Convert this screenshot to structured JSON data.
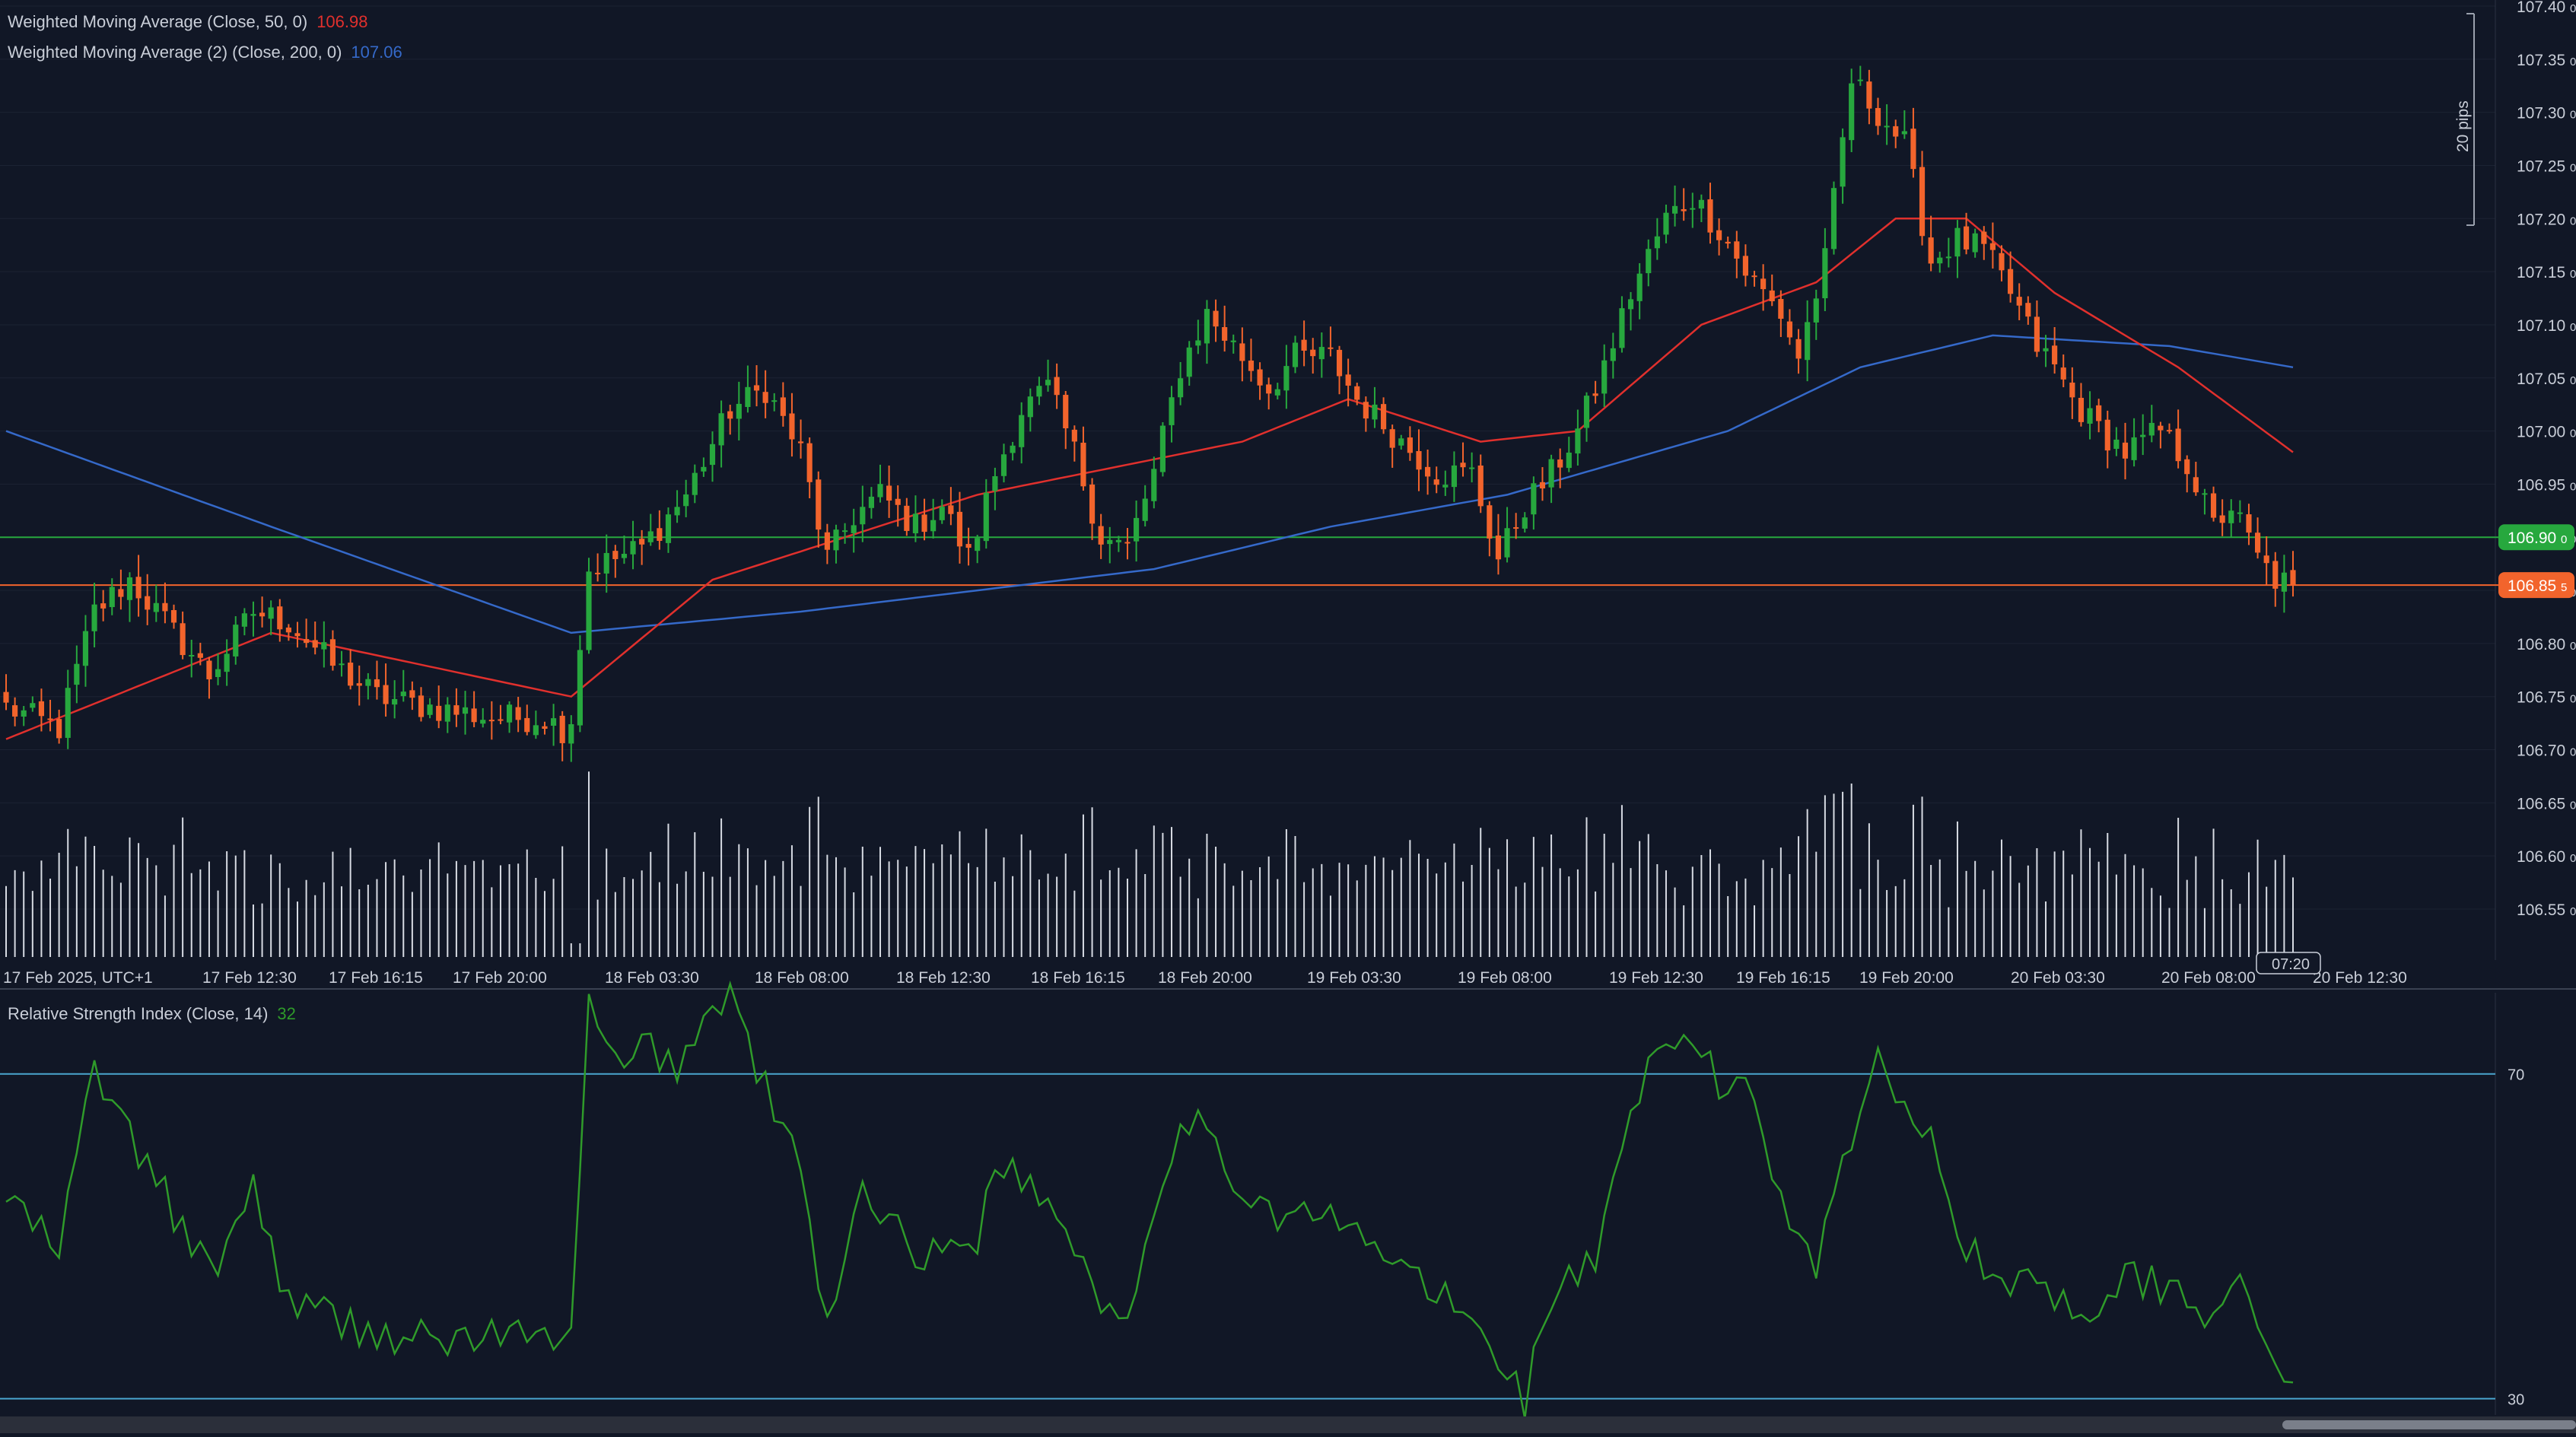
{
  "colors": {
    "background": "#111726",
    "grid": "#1c2333",
    "up": "#27a83e",
    "down": "#f2642c",
    "wma50": "#e0302d",
    "wma200": "#3569c9",
    "rsi": "#2f9b2a",
    "rsi_band": "#4aa5cf",
    "support_line": "#27a83e",
    "price_line": "#f2642c",
    "axis_text": "#c9ced8",
    "volume": "#d7dbe3"
  },
  "indicators": [
    {
      "label": "Weighted Moving Average (Close, 50, 0)",
      "value": "106.98",
      "color": "#e0302d"
    },
    {
      "label": "Weighted Moving Average (2) (Close, 200, 0)",
      "value": "107.06",
      "color": "#3569c9"
    }
  ],
  "rsi_legend": {
    "label": "Relative Strength Index (Close, 14)",
    "value": "32",
    "color": "#2f9b2a"
  },
  "scale_marker": "20 pips",
  "price_badges": [
    {
      "value": "106.90",
      "superscript": "0",
      "color": "#27a83e"
    },
    {
      "value": "106.85",
      "superscript": "5",
      "color": "#f2642c"
    }
  ],
  "price_ticks": [
    "107.40",
    "107.35",
    "107.30",
    "107.25",
    "107.20",
    "107.15",
    "107.10",
    "107.05",
    "107.00",
    "106.95",
    "106.90",
    "106.85",
    "106.80",
    "106.75",
    "106.70",
    "106.65",
    "106.60",
    "106.55"
  ],
  "time_labels": [
    "17 Feb 2025, UTC+1",
    "17 Feb 12:30",
    "17 Feb 16:15",
    "17 Feb 20:00",
    "18 Feb 03:30",
    "18 Feb 08:00",
    "18 Feb 12:30",
    "18 Feb 16:15",
    "18 Feb 20:00",
    "19 Feb 03:30",
    "19 Feb 08:00",
    "19 Feb 12:30",
    "19 Feb 16:15",
    "19 Feb 20:00",
    "20 Feb 03:30",
    "20 Feb 08:00",
    "20 Feb 12:30"
  ],
  "countdown_label": "07:20",
  "rsi_levels": [
    "70",
    "30"
  ],
  "chart_data": [
    {
      "type": "candlestick",
      "symbol_units": "price",
      "ylim": [
        106.52,
        107.4
      ],
      "price_ticks": [
        107.4,
        107.35,
        107.3,
        107.25,
        107.2,
        107.15,
        107.1,
        107.05,
        107.0,
        106.95,
        106.9,
        106.85,
        106.8,
        106.75,
        106.7,
        106.65,
        106.6,
        106.55
      ],
      "x_labels": [
        "17 Feb 2025, UTC+1",
        "17 Feb 12:30",
        "17 Feb 16:15",
        "17 Feb 20:00",
        "18 Feb 03:30",
        "18 Feb 08:00",
        "18 Feb 12:30",
        "18 Feb 16:15",
        "18 Feb 20:00",
        "19 Feb 03:30",
        "19 Feb 08:00",
        "19 Feb 12:30",
        "19 Feb 16:15",
        "19 Feb 20:00",
        "20 Feb 03:30",
        "20 Feb 08:00",
        "20 Feb 12:30"
      ],
      "close_anchors": [
        [
          0,
          106.74
        ],
        [
          6,
          106.72
        ],
        [
          10,
          106.83
        ],
        [
          14,
          106.86
        ],
        [
          18,
          106.82
        ],
        [
          23,
          106.77
        ],
        [
          28,
          106.83
        ],
        [
          32,
          106.82
        ],
        [
          37,
          106.78
        ],
        [
          42,
          106.75
        ],
        [
          48,
          106.74
        ],
        [
          55,
          106.73
        ],
        [
          61,
          106.73
        ],
        [
          63,
          106.72
        ],
        [
          64,
          106.73
        ],
        [
          66,
          106.87
        ],
        [
          72,
          106.89
        ],
        [
          77,
          106.94
        ],
        [
          82,
          107.02
        ],
        [
          86,
          107.04
        ],
        [
          90,
          106.98
        ],
        [
          93,
          106.88
        ],
        [
          96,
          106.92
        ],
        [
          99,
          106.94
        ],
        [
          103,
          106.91
        ],
        [
          106,
          106.93
        ],
        [
          109,
          106.88
        ],
        [
          112,
          106.96
        ],
        [
          115,
          107.02
        ],
        [
          118,
          107.04
        ],
        [
          121,
          106.98
        ],
        [
          124,
          106.9
        ],
        [
          127,
          106.89
        ],
        [
          130,
          106.96
        ],
        [
          133,
          107.06
        ],
        [
          136,
          107.11
        ],
        [
          140,
          107.07
        ],
        [
          143,
          107.04
        ],
        [
          146,
          107.07
        ],
        [
          150,
          107.07
        ],
        [
          153,
          107.03
        ],
        [
          158,
          106.99
        ],
        [
          162,
          106.96
        ],
        [
          166,
          106.96
        ],
        [
          169,
          106.88
        ],
        [
          172,
          106.93
        ],
        [
          175,
          106.96
        ],
        [
          178,
          107.0
        ],
        [
          181,
          107.06
        ],
        [
          184,
          107.13
        ],
        [
          188,
          107.2
        ],
        [
          191,
          107.22
        ],
        [
          194,
          107.19
        ],
        [
          197,
          107.15
        ],
        [
          201,
          107.11
        ],
        [
          203,
          107.07
        ],
        [
          206,
          107.16
        ],
        [
          209,
          107.33
        ],
        [
          212,
          107.3
        ],
        [
          215,
          107.27
        ],
        [
          218,
          107.16
        ],
        [
          221,
          107.18
        ],
        [
          224,
          107.17
        ],
        [
          227,
          107.13
        ],
        [
          230,
          107.08
        ],
        [
          232,
          107.06
        ],
        [
          234,
          107.03
        ],
        [
          236,
          107.01
        ],
        [
          240,
          106.98
        ],
        [
          244,
          107.0
        ],
        [
          247,
          106.97
        ],
        [
          250,
          106.91
        ],
        [
          252,
          106.93
        ],
        [
          255,
          106.88
        ],
        [
          257,
          106.86
        ],
        [
          259,
          106.855
        ]
      ],
      "wma50": [
        [
          0,
          106.71
        ],
        [
          30,
          106.81
        ],
        [
          64,
          106.75
        ],
        [
          80,
          106.86
        ],
        [
          110,
          106.94
        ],
        [
          140,
          106.99
        ],
        [
          152,
          107.03
        ],
        [
          167,
          106.99
        ],
        [
          178,
          107.0
        ],
        [
          192,
          107.1
        ],
        [
          205,
          107.14
        ],
        [
          214,
          107.2
        ],
        [
          222,
          107.2
        ],
        [
          232,
          107.13
        ],
        [
          246,
          107.06
        ],
        [
          259,
          106.98
        ]
      ],
      "wma200": [
        [
          0,
          107.0
        ],
        [
          30,
          106.91
        ],
        [
          64,
          106.81
        ],
        [
          90,
          106.83
        ],
        [
          130,
          106.87
        ],
        [
          150,
          106.91
        ],
        [
          170,
          106.94
        ],
        [
          195,
          107.0
        ],
        [
          210,
          107.06
        ],
        [
          225,
          107.09
        ],
        [
          245,
          107.08
        ],
        [
          259,
          107.06
        ]
      ],
      "horizontal_lines": [
        {
          "price": 106.9,
          "color": "#27a83e"
        },
        {
          "price": 106.855,
          "color": "#f2642c"
        }
      ],
      "n_candles": 260,
      "volume": "per-candle histogram (relative units)"
    },
    {
      "type": "line",
      "name": "RSI(14)",
      "ylim": [
        28,
        80
      ],
      "levels": [
        70,
        30
      ],
      "anchors": [
        [
          0,
          55
        ],
        [
          6,
          48
        ],
        [
          10,
          71
        ],
        [
          14,
          62
        ],
        [
          18,
          55
        ],
        [
          23,
          45
        ],
        [
          28,
          56
        ],
        [
          32,
          42
        ],
        [
          37,
          40
        ],
        [
          42,
          38
        ],
        [
          50,
          37
        ],
        [
          55,
          38
        ],
        [
          61,
          37
        ],
        [
          63,
          39
        ],
        [
          64,
          37
        ],
        [
          66,
          78
        ],
        [
          70,
          69
        ],
        [
          72,
          74
        ],
        [
          76,
          71
        ],
        [
          80,
          78
        ],
        [
          82,
          80
        ],
        [
          86,
          68
        ],
        [
          90,
          58
        ],
        [
          93,
          38
        ],
        [
          96,
          55
        ],
        [
          100,
          53
        ],
        [
          104,
          47
        ],
        [
          110,
          50
        ],
        [
          112,
          60
        ],
        [
          116,
          56
        ],
        [
          120,
          52
        ],
        [
          124,
          42
        ],
        [
          127,
          40
        ],
        [
          130,
          55
        ],
        [
          134,
          65
        ],
        [
          138,
          58
        ],
        [
          144,
          53
        ],
        [
          150,
          52
        ],
        [
          156,
          48
        ],
        [
          162,
          43
        ],
        [
          168,
          37
        ],
        [
          172,
          30
        ],
        [
          175,
          43
        ],
        [
          180,
          47
        ],
        [
          186,
          71
        ],
        [
          191,
          75
        ],
        [
          194,
          68
        ],
        [
          197,
          70
        ],
        [
          201,
          55
        ],
        [
          205,
          47
        ],
        [
          209,
          63
        ],
        [
          212,
          71
        ],
        [
          215,
          66
        ],
        [
          218,
          64
        ],
        [
          221,
          50
        ],
        [
          224,
          46
        ],
        [
          227,
          44
        ],
        [
          230,
          46
        ],
        [
          232,
          42
        ],
        [
          235,
          41
        ],
        [
          238,
          43
        ],
        [
          241,
          45
        ],
        [
          245,
          44
        ],
        [
          249,
          40
        ],
        [
          252,
          46
        ],
        [
          255,
          37
        ],
        [
          259,
          33
        ]
      ],
      "last_value": 32
    }
  ]
}
